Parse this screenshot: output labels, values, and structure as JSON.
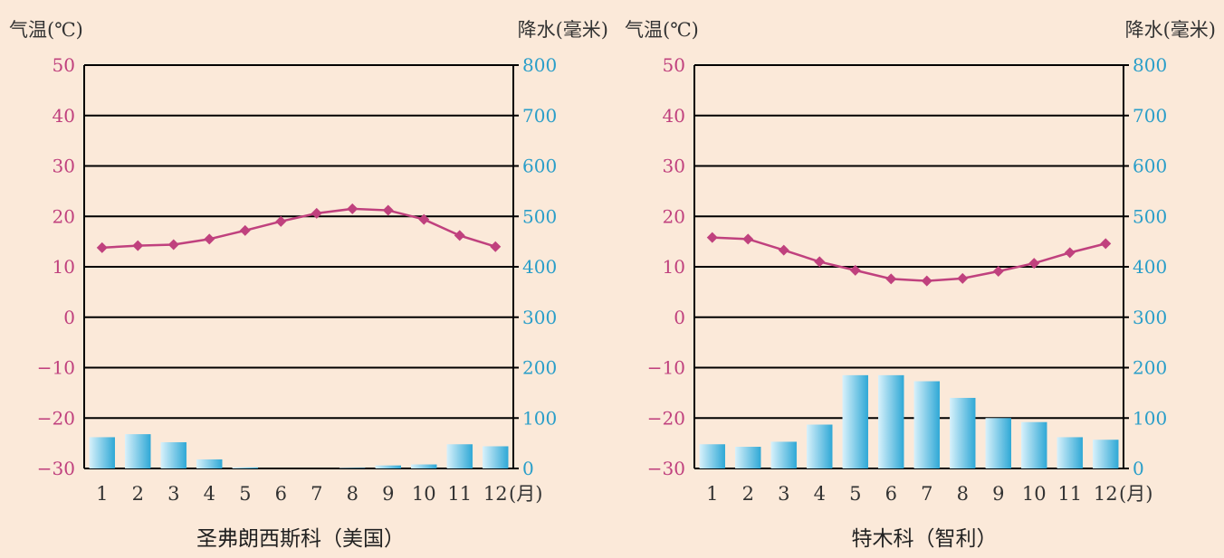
{
  "colors": {
    "background": "#fbe9d9",
    "temperature": "#c0417e",
    "temperature_axis": "#c0417e",
    "precipitation_axis": "#2a9ec9",
    "bar_light": "#d8f1fb",
    "bar_dark": "#2ea8d6",
    "grid": "#000000"
  },
  "chart_data": [
    {
      "type": "bar+line",
      "title": "圣弗朗西斯科（美国）",
      "y_left_label": "气温(℃)",
      "y_right_label": "降水(毫米)",
      "x_unit": "(月)",
      "x_ticks": [
        "1",
        "2",
        "3",
        "4",
        "5",
        "6",
        "7",
        "8",
        "9",
        "10",
        "11",
        "12"
      ],
      "y_left_ticks": [
        "50",
        "40",
        "30",
        "20",
        "10",
        "0",
        "−10",
        "−20",
        "−30"
      ],
      "y_right_ticks": [
        "800",
        "700",
        "600",
        "500",
        "400",
        "300",
        "200",
        "100",
        "0"
      ],
      "y_left_range": [
        -30,
        50
      ],
      "y_right_range": [
        0,
        800
      ],
      "grid": true,
      "temperature": [
        13.8,
        14.2,
        14.4,
        15.5,
        17.2,
        19.0,
        20.6,
        21.5,
        21.2,
        19.4,
        16.2,
        14.0
      ],
      "precipitation": [
        62,
        68,
        52,
        18,
        2,
        0,
        0,
        1,
        6,
        8,
        48,
        44
      ]
    },
    {
      "type": "bar+line",
      "title": "特木科（智利）",
      "y_left_label": "气温(℃)",
      "y_right_label": "降水(毫米)",
      "x_unit": "(月)",
      "x_ticks": [
        "1",
        "2",
        "3",
        "4",
        "5",
        "6",
        "7",
        "8",
        "9",
        "10",
        "11",
        "12"
      ],
      "y_left_ticks": [
        "50",
        "40",
        "30",
        "20",
        "10",
        "0",
        "−10",
        "−20",
        "−30"
      ],
      "y_right_ticks": [
        "800",
        "700",
        "600",
        "500",
        "400",
        "300",
        "200",
        "100",
        "0"
      ],
      "y_left_range": [
        -30,
        50
      ],
      "y_right_range": [
        0,
        800
      ],
      "grid": true,
      "temperature": [
        15.8,
        15.5,
        13.3,
        11.0,
        9.3,
        7.6,
        7.2,
        7.7,
        9.1,
        10.7,
        12.8,
        14.6
      ],
      "precipitation": [
        48,
        43,
        53,
        87,
        185,
        185,
        173,
        140,
        100,
        92,
        62,
        57
      ]
    }
  ]
}
